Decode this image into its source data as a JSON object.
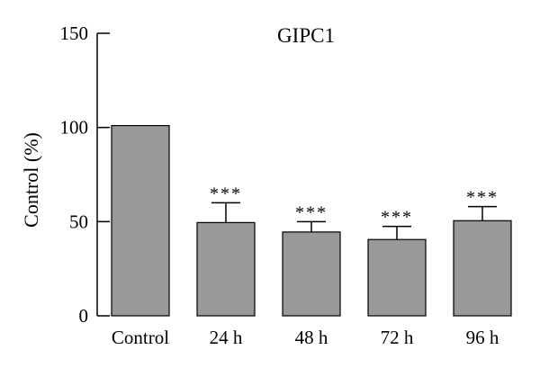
{
  "chart_data": {
    "type": "bar",
    "title": "GIPC1",
    "xlabel": "",
    "ylabel": "Control (%)",
    "ylim": [
      0,
      150
    ],
    "yticks": [
      0,
      50,
      100,
      150
    ],
    "categories": [
      "Control",
      "24 h",
      "48 h",
      "72 h",
      "96 h"
    ],
    "values": [
      101,
      49.5,
      44.5,
      40.5,
      50.5
    ],
    "error_upper": [
      101,
      60,
      50,
      47.5,
      58
    ],
    "annotations": [
      "",
      "***",
      "***",
      "***",
      "***"
    ],
    "grid": false,
    "bar_color": "#999999",
    "edge_color": "#000000"
  }
}
